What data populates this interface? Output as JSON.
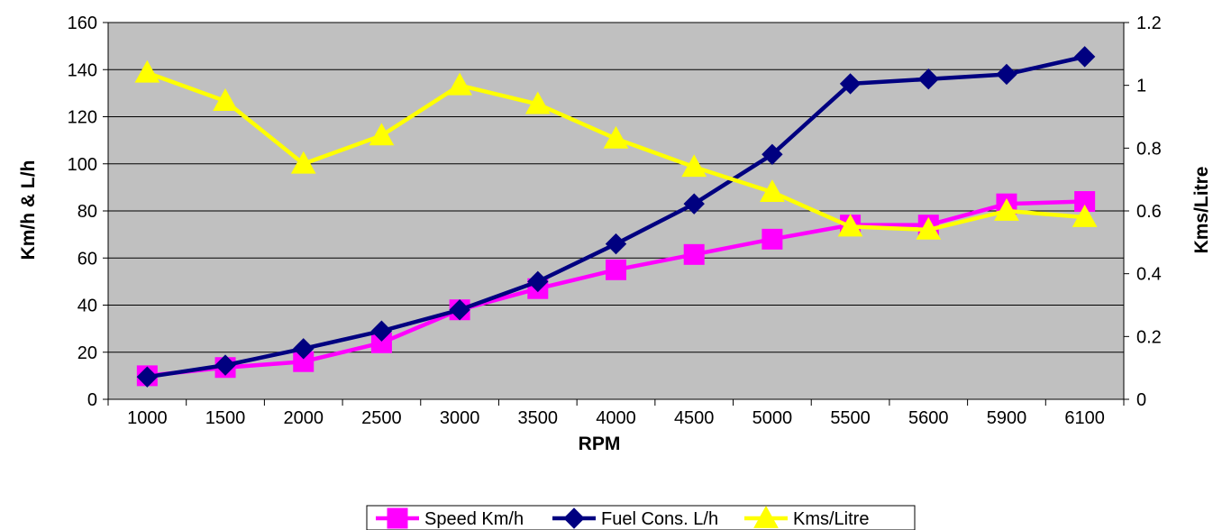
{
  "chart_data": {
    "type": "line",
    "title": "",
    "xlabel": "RPM",
    "ylabel_left": "Km/h & L/h",
    "ylabel_right": "Kms/Litre",
    "categories": [
      "1000",
      "1500",
      "2000",
      "2500",
      "3000",
      "3500",
      "4000",
      "4500",
      "5000",
      "5500",
      "5600",
      "5900",
      "6100"
    ],
    "y_left": {
      "min": 0,
      "max": 160,
      "ticks": [
        "0",
        "20",
        "40",
        "60",
        "80",
        "100",
        "120",
        "140",
        "160"
      ]
    },
    "y_right": {
      "min": 0,
      "max": 1.2,
      "ticks": [
        "0",
        "0.2",
        "0.4",
        "0.6",
        "0.8",
        "1",
        "1.2"
      ]
    },
    "grid": true,
    "legend_position": "bottom",
    "series": [
      {
        "name": "Speed Km/h",
        "axis": "left",
        "marker": "square",
        "color": "#FF00FF",
        "values": [
          10,
          13.5,
          16,
          24,
          38,
          47,
          55,
          61.5,
          68,
          74,
          74,
          83,
          84
        ]
      },
      {
        "name": "Fuel Cons. L/h",
        "axis": "left",
        "marker": "diamond",
        "color": "#000080",
        "values": [
          9.5,
          14.5,
          21.5,
          29,
          38,
          50,
          66,
          83,
          104,
          134,
          136,
          138,
          145.5
        ]
      },
      {
        "name": "Kms/Litre",
        "axis": "right",
        "marker": "triangle",
        "color": "#FFFF00",
        "values": [
          1.04,
          0.95,
          0.75,
          0.84,
          1.0,
          0.94,
          0.83,
          0.74,
          0.66,
          0.55,
          0.54,
          0.6,
          0.58
        ]
      }
    ],
    "plot_background": "#C0C0C0"
  }
}
